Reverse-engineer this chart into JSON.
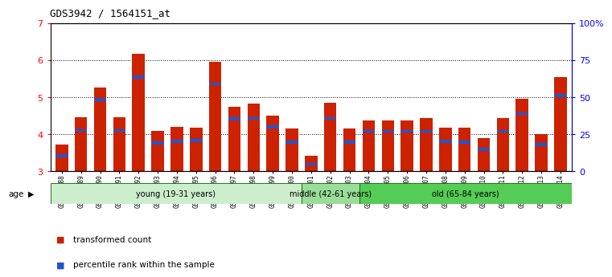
{
  "title": "GDS3942 / 1564151_at",
  "samples": [
    "GSM812988",
    "GSM812989",
    "GSM812990",
    "GSM812991",
    "GSM812992",
    "GSM812993",
    "GSM812994",
    "GSM812995",
    "GSM812996",
    "GSM812997",
    "GSM812998",
    "GSM812999",
    "GSM813000",
    "GSM813001",
    "GSM813002",
    "GSM813003",
    "GSM813004",
    "GSM813005",
    "GSM813006",
    "GSM813007",
    "GSM813008",
    "GSM813009",
    "GSM813010",
    "GSM813011",
    "GSM813012",
    "GSM813013",
    "GSM813014"
  ],
  "red_values": [
    3.72,
    4.45,
    5.27,
    4.45,
    6.18,
    4.1,
    4.2,
    4.18,
    5.97,
    4.75,
    4.83,
    4.5,
    4.15,
    3.42,
    4.85,
    4.15,
    4.38,
    4.38,
    4.38,
    4.43,
    4.18,
    4.18,
    3.9,
    4.43,
    4.95,
    4.0,
    5.55
  ],
  "blue_segment_bottom": [
    3.38,
    4.06,
    4.9,
    4.06,
    5.5,
    3.72,
    3.77,
    3.79,
    5.32,
    4.38,
    4.39,
    4.16,
    3.75,
    3.15,
    4.39,
    3.75,
    4.04,
    4.04,
    4.04,
    4.04,
    3.77,
    3.75,
    3.55,
    4.04,
    4.52,
    3.68,
    5.0
  ],
  "blue_segment_top": [
    3.46,
    4.14,
    4.98,
    4.14,
    5.58,
    3.8,
    3.85,
    3.87,
    5.4,
    4.46,
    4.47,
    4.24,
    3.83,
    3.23,
    4.47,
    3.83,
    4.12,
    4.12,
    4.12,
    4.12,
    3.85,
    3.83,
    3.63,
    4.12,
    4.6,
    3.76,
    5.08
  ],
  "ylim": [
    3,
    7
  ],
  "yticks": [
    3,
    4,
    5,
    6,
    7
  ],
  "y2ticks": [
    0,
    25,
    50,
    75,
    100
  ],
  "y2labels": [
    "0",
    "25",
    "50",
    "75",
    "100%"
  ],
  "bar_color": "#cc2200",
  "blue_color": "#2255cc",
  "age_groups": [
    {
      "label": "young (19-31 years)",
      "start": 0,
      "end": 13,
      "color": "#cceecc"
    },
    {
      "label": "middle (42-61 years)",
      "start": 13,
      "end": 16,
      "color": "#99dd99"
    },
    {
      "label": "old (65-84 years)",
      "start": 16,
      "end": 27,
      "color": "#55cc55"
    }
  ],
  "legend_items": [
    {
      "label": "transformed count",
      "color": "#cc2200"
    },
    {
      "label": "percentile rank within the sample",
      "color": "#2255cc"
    }
  ]
}
